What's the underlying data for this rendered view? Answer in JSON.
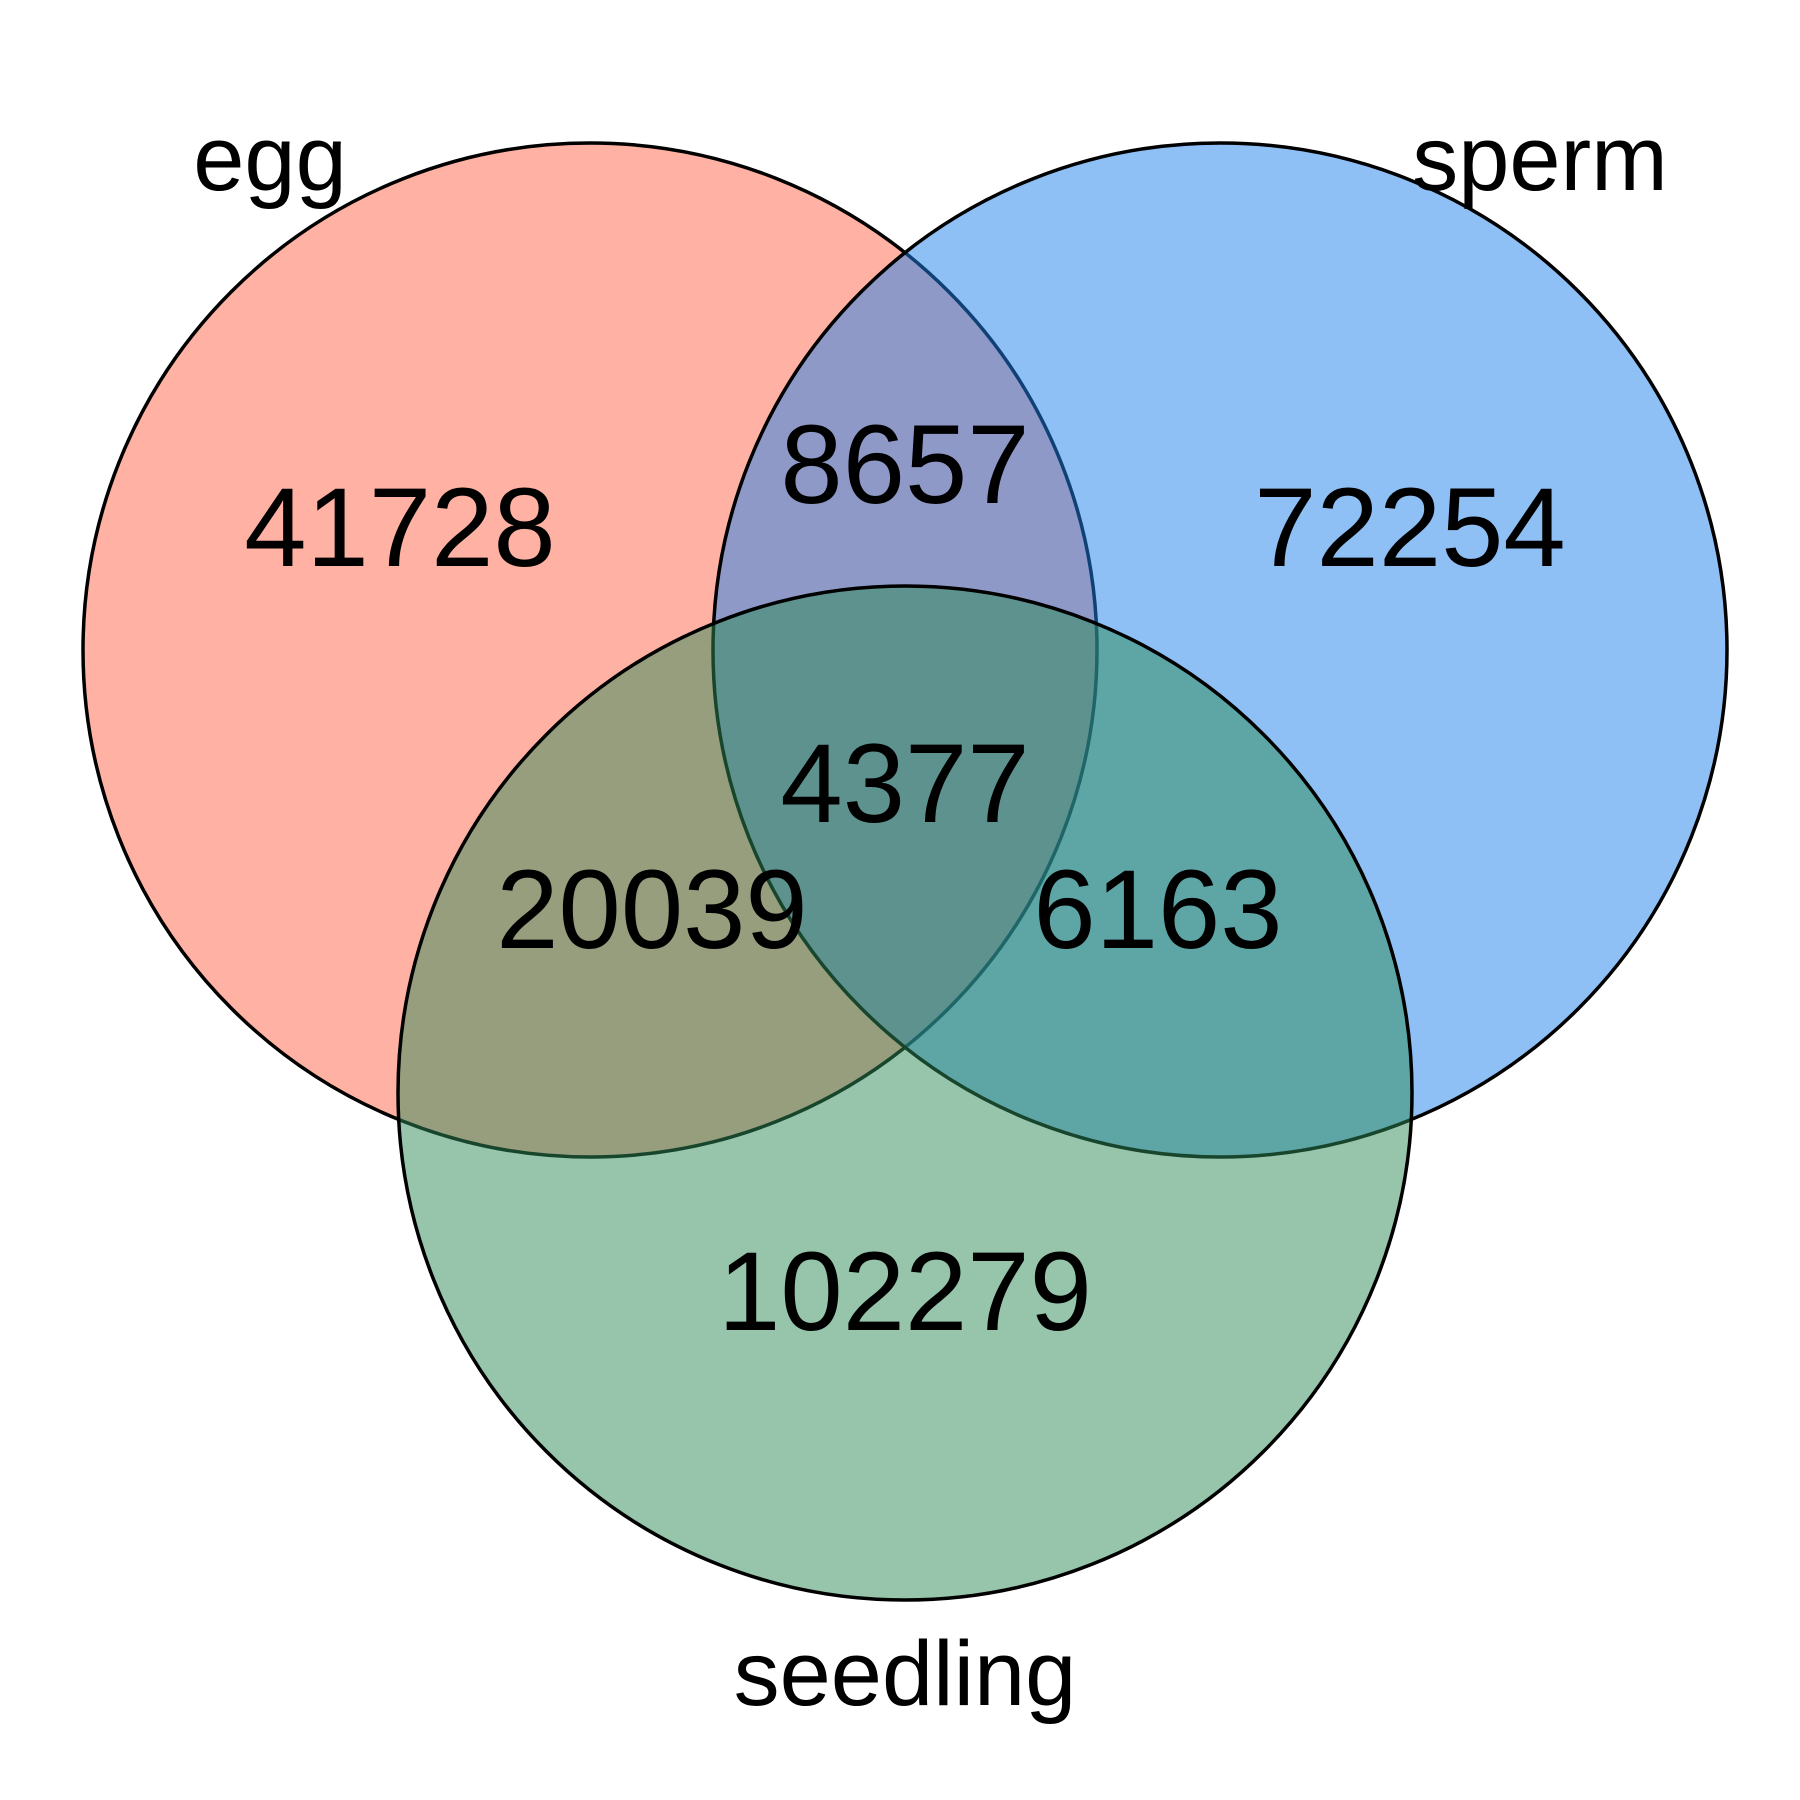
{
  "sets": [
    {
      "name": "egg",
      "color": "#FF6347"
    },
    {
      "name": "sperm",
      "color": "#1E82EB"
    },
    {
      "name": "seedling",
      "color": "#2E8B57"
    }
  ],
  "regions": {
    "egg_only": "41728",
    "sperm_only": "72254",
    "seedling_only": "102279",
    "egg_sperm": "8657",
    "egg_seedling": "20039",
    "sperm_seedling": "6163",
    "all_three": "4377"
  }
}
